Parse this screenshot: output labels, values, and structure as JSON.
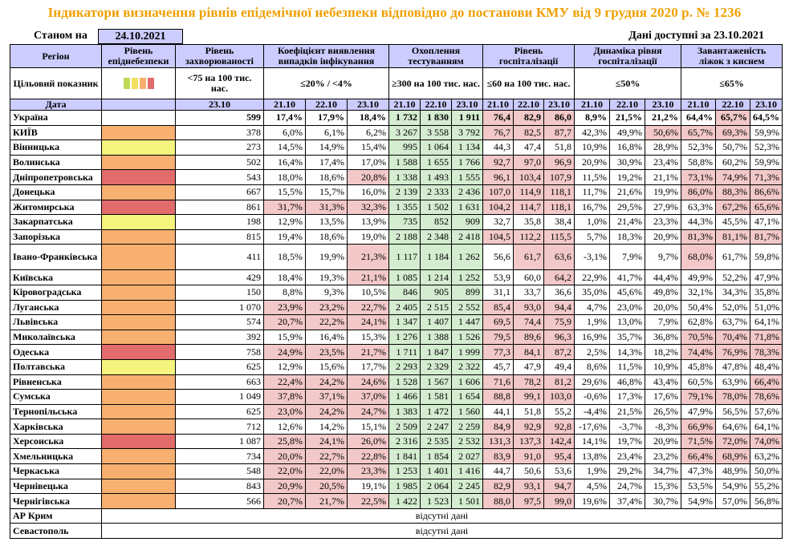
{
  "title": "Індикатори визначення рівнів епідемічної небезпеки відповідно до постанови КМУ від 9 грудня 2020 р. № 1236",
  "as_of_label": "Станом на",
  "as_of_date": "24.10.2021",
  "data_available": "Дані доступні за 23.10.2021",
  "headers": {
    "region": "Регіон",
    "danger_level": "Рівень епіднебезпеки",
    "morbidity": "Рівень захворюваності",
    "detection": "Коефіцієнт виявлення випадків інфікування",
    "testing": "Охоплення тестуванням",
    "hospitalization": "Рівень госпіталізації",
    "hosp_dynamics": "Динаміка рівня госпіталізації",
    "oxygen": "Завантаженість ліжок з киснем"
  },
  "target_row": {
    "label": "Цільовий показник",
    "morbidity": "<75 на 100 тис. нас.",
    "detection": "≤20% / <4%",
    "testing": "≥300 на 100 тис. нас.",
    "hospitalization": "≤60 на 100 тис. нас.",
    "hosp_dynamics": "≤50%",
    "oxygen": "≤65%",
    "swatch_colors": [
      "#c0d858",
      "#f4e060",
      "#f7b070",
      "#e26b6b"
    ]
  },
  "date_row": {
    "label": "Дата",
    "morbidity": "23.10",
    "dates": [
      "21.10",
      "22.10",
      "23.10"
    ]
  },
  "colors": {
    "red": "#f2c8c8",
    "green": "#d4ecd0",
    "level_red": "#e26b6b",
    "level_orange": "#f7b070",
    "level_yellow": "#f4f47e",
    "header": "#ccccff",
    "title": "#f0a000"
  },
  "rows": [
    {
      "name": "Україна",
      "level": "",
      "morb": "599",
      "det": [
        "17,4%",
        "17,9%",
        "18,4%"
      ],
      "test": [
        "1 732",
        "1 830",
        "1 911"
      ],
      "hosp": [
        "76,4",
        "82,9",
        "86,0"
      ],
      "dyn": [
        "8,9%",
        "21,5%",
        "21,2%"
      ],
      "oxy": [
        "64,4%",
        "65,7%",
        "64,5%"
      ],
      "hl": {
        "test": [
          1,
          1,
          1
        ],
        "hosp": [
          1,
          1,
          1
        ],
        "oxy": [
          0,
          1,
          0
        ]
      }
    },
    {
      "name": "КИЇВ",
      "level": "orange",
      "morb": "378",
      "det": [
        "6,0%",
        "6,1%",
        "6,2%"
      ],
      "test": [
        "3 267",
        "3 558",
        "3 792"
      ],
      "hosp": [
        "76,7",
        "82,5",
        "87,7"
      ],
      "dyn": [
        "42,3%",
        "49,9%",
        "50,6%"
      ],
      "oxy": [
        "65,7%",
        "69,3%",
        "59,9%"
      ],
      "hl": {
        "test": [
          1,
          1,
          1
        ],
        "hosp": [
          1,
          1,
          1
        ],
        "dyn": [
          0,
          0,
          1
        ],
        "oxy": [
          1,
          1,
          0
        ]
      }
    },
    {
      "name": "Вінницька",
      "level": "yellow",
      "morb": "273",
      "det": [
        "14,5%",
        "14,9%",
        "15,4%"
      ],
      "test": [
        "995",
        "1 064",
        "1 134"
      ],
      "hosp": [
        "44,3",
        "47,4",
        "51,8"
      ],
      "dyn": [
        "10,9%",
        "16,8%",
        "28,9%"
      ],
      "oxy": [
        "52,3%",
        "50,7%",
        "52,3%"
      ],
      "hl": {
        "test": [
          1,
          1,
          1
        ]
      }
    },
    {
      "name": "Волинська",
      "level": "orange",
      "morb": "502",
      "det": [
        "16,4%",
        "17,4%",
        "17,0%"
      ],
      "test": [
        "1 588",
        "1 655",
        "1 766"
      ],
      "hosp": [
        "92,7",
        "97,0",
        "96,9"
      ],
      "dyn": [
        "20,9%",
        "30,9%",
        "23,4%"
      ],
      "oxy": [
        "58,8%",
        "60,2%",
        "59,9%"
      ],
      "hl": {
        "test": [
          1,
          1,
          1
        ],
        "hosp": [
          1,
          1,
          1
        ]
      }
    },
    {
      "name": "Дніпропетровська",
      "level": "red",
      "morb": "543",
      "det": [
        "18,0%",
        "18,6%",
        "20,8%"
      ],
      "test": [
        "1 338",
        "1 493",
        "1 555"
      ],
      "hosp": [
        "96,1",
        "103,4",
        "107,9"
      ],
      "dyn": [
        "11,5%",
        "19,2%",
        "21,1%"
      ],
      "oxy": [
        "73,1%",
        "74,9%",
        "71,3%"
      ],
      "hl": {
        "det": [
          0,
          0,
          1
        ],
        "test": [
          1,
          1,
          1
        ],
        "hosp": [
          1,
          1,
          1
        ],
        "oxy": [
          1,
          1,
          1
        ]
      }
    },
    {
      "name": "Донецька",
      "level": "orange",
      "morb": "667",
      "det": [
        "15,5%",
        "15,7%",
        "16,0%"
      ],
      "test": [
        "2 139",
        "2 333",
        "2 436"
      ],
      "hosp": [
        "107,0",
        "114,9",
        "118,1"
      ],
      "dyn": [
        "11,7%",
        "21,6%",
        "19,9%"
      ],
      "oxy": [
        "86,0%",
        "88,3%",
        "86,6%"
      ],
      "hl": {
        "test": [
          1,
          1,
          1
        ],
        "hosp": [
          1,
          1,
          1
        ],
        "oxy": [
          1,
          1,
          1
        ]
      }
    },
    {
      "name": "Житомирська",
      "level": "red",
      "morb": "861",
      "det": [
        "31,7%",
        "31,3%",
        "32,3%"
      ],
      "test": [
        "1 355",
        "1 502",
        "1 631"
      ],
      "hosp": [
        "104,2",
        "114,7",
        "118,1"
      ],
      "dyn": [
        "16,7%",
        "29,5%",
        "27,9%"
      ],
      "oxy": [
        "63,3%",
        "67,2%",
        "65,6%"
      ],
      "hl": {
        "det": [
          1,
          1,
          1
        ],
        "test": [
          1,
          1,
          1
        ],
        "hosp": [
          1,
          1,
          1
        ],
        "oxy": [
          0,
          1,
          1
        ]
      }
    },
    {
      "name": "Закарпатська",
      "level": "yellow",
      "morb": "198",
      "det": [
        "12,9%",
        "13,5%",
        "13,9%"
      ],
      "test": [
        "735",
        "852",
        "909"
      ],
      "hosp": [
        "32,7",
        "35,8",
        "38,4"
      ],
      "dyn": [
        "1,0%",
        "21,4%",
        "23,3%"
      ],
      "oxy": [
        "44,3%",
        "45,5%",
        "47,1%"
      ],
      "hl": {
        "test": [
          1,
          1,
          1
        ]
      }
    },
    {
      "name": "Запорізька",
      "level": "orange",
      "morb": "815",
      "det": [
        "19,4%",
        "18,6%",
        "19,0%"
      ],
      "test": [
        "2 188",
        "2 348",
        "2 418"
      ],
      "hosp": [
        "104,5",
        "112,2",
        "115,5"
      ],
      "dyn": [
        "5,7%",
        "18,3%",
        "20,9%"
      ],
      "oxy": [
        "81,3%",
        "81,1%",
        "81,7%"
      ],
      "hl": {
        "test": [
          1,
          1,
          1
        ],
        "hosp": [
          1,
          1,
          1
        ],
        "oxy": [
          1,
          1,
          1
        ]
      }
    },
    {
      "name": "Івано-Франківська",
      "level": "orange",
      "morb": "411",
      "det": [
        "18,5%",
        "19,9%",
        "21,3%"
      ],
      "test": [
        "1 117",
        "1 184",
        "1 262"
      ],
      "hosp": [
        "56,6",
        "61,7",
        "63,6"
      ],
      "dyn": [
        "-3,1%",
        "7,9%",
        "9,7%"
      ],
      "oxy": [
        "68,0%",
        "61,7%",
        "59,8%"
      ],
      "hl": {
        "det": [
          0,
          0,
          1
        ],
        "test": [
          1,
          1,
          1
        ],
        "hosp": [
          0,
          1,
          1
        ],
        "oxy": [
          1,
          0,
          0
        ]
      },
      "tall": true
    },
    {
      "name": "Київська",
      "level": "orange",
      "morb": "429",
      "det": [
        "18,4%",
        "19,3%",
        "21,1%"
      ],
      "test": [
        "1 085",
        "1 214",
        "1 252"
      ],
      "hosp": [
        "53,9",
        "60,0",
        "64,2"
      ],
      "dyn": [
        "22,9%",
        "41,7%",
        "44,4%"
      ],
      "oxy": [
        "49,9%",
        "52,2%",
        "47,9%"
      ],
      "hl": {
        "det": [
          0,
          0,
          1
        ],
        "test": [
          1,
          1,
          1
        ],
        "hosp": [
          0,
          0,
          1
        ]
      }
    },
    {
      "name": "Кіровоградська",
      "level": "orange",
      "morb": "150",
      "det": [
        "8,8%",
        "9,3%",
        "10,5%"
      ],
      "test": [
        "846",
        "905",
        "899"
      ],
      "hosp": [
        "31,1",
        "33,7",
        "36,6"
      ],
      "dyn": [
        "35,0%",
        "45,6%",
        "49,8%"
      ],
      "oxy": [
        "32,1%",
        "34,3%",
        "35,8%"
      ],
      "hl": {
        "test": [
          1,
          1,
          1
        ]
      }
    },
    {
      "name": "Луганська",
      "level": "orange",
      "morb": "1 070",
      "det": [
        "23,9%",
        "23,2%",
        "22,7%"
      ],
      "test": [
        "2 405",
        "2 515",
        "2 552"
      ],
      "hosp": [
        "85,4",
        "93,0",
        "94,4"
      ],
      "dyn": [
        "4,7%",
        "23,0%",
        "20,0%"
      ],
      "oxy": [
        "50,4%",
        "52,0%",
        "51,0%"
      ],
      "hl": {
        "det": [
          1,
          1,
          1
        ],
        "test": [
          1,
          1,
          1
        ],
        "hosp": [
          1,
          1,
          1
        ]
      }
    },
    {
      "name": "Львівська",
      "level": "orange",
      "morb": "574",
      "det": [
        "20,7%",
        "22,2%",
        "24,1%"
      ],
      "test": [
        "1 347",
        "1 407",
        "1 447"
      ],
      "hosp": [
        "69,5",
        "74,4",
        "75,9"
      ],
      "dyn": [
        "1,9%",
        "13,0%",
        "7,9%"
      ],
      "oxy": [
        "62,8%",
        "63,7%",
        "64,1%"
      ],
      "hl": {
        "det": [
          1,
          1,
          1
        ],
        "test": [
          1,
          1,
          1
        ],
        "hosp": [
          1,
          1,
          1
        ]
      }
    },
    {
      "name": "Миколаївська",
      "level": "orange",
      "morb": "392",
      "det": [
        "15,9%",
        "16,4%",
        "15,3%"
      ],
      "test": [
        "1 276",
        "1 388",
        "1 526"
      ],
      "hosp": [
        "79,5",
        "89,6",
        "96,3"
      ],
      "dyn": [
        "16,9%",
        "35,7%",
        "36,8%"
      ],
      "oxy": [
        "70,5%",
        "70,4%",
        "71,8%"
      ],
      "hl": {
        "test": [
          1,
          1,
          1
        ],
        "hosp": [
          1,
          1,
          1
        ],
        "oxy": [
          1,
          1,
          1
        ]
      }
    },
    {
      "name": "Одеська",
      "level": "red",
      "morb": "758",
      "det": [
        "24,9%",
        "23,5%",
        "21,7%"
      ],
      "test": [
        "1 711",
        "1 847",
        "1 999"
      ],
      "hosp": [
        "77,3",
        "84,1",
        "87,2"
      ],
      "dyn": [
        "2,5%",
        "14,3%",
        "18,2%"
      ],
      "oxy": [
        "74,4%",
        "76,9%",
        "78,3%"
      ],
      "hl": {
        "det": [
          1,
          1,
          1
        ],
        "test": [
          1,
          1,
          1
        ],
        "hosp": [
          1,
          1,
          1
        ],
        "oxy": [
          1,
          1,
          1
        ]
      }
    },
    {
      "name": "Полтавська",
      "level": "yellow",
      "morb": "625",
      "det": [
        "12,9%",
        "15,6%",
        "17,7%"
      ],
      "test": [
        "2 293",
        "2 329",
        "2 322"
      ],
      "hosp": [
        "45,7",
        "47,9",
        "49,4"
      ],
      "dyn": [
        "8,6%",
        "11,5%",
        "10,9%"
      ],
      "oxy": [
        "45,8%",
        "47,8%",
        "48,4%"
      ],
      "hl": {
        "test": [
          1,
          1,
          1
        ]
      }
    },
    {
      "name": "Рівненська",
      "level": "orange",
      "morb": "663",
      "det": [
        "22,4%",
        "24,2%",
        "24,6%"
      ],
      "test": [
        "1 528",
        "1 567",
        "1 606"
      ],
      "hosp": [
        "71,6",
        "78,2",
        "81,2"
      ],
      "dyn": [
        "29,6%",
        "46,8%",
        "43,4%"
      ],
      "oxy": [
        "60,5%",
        "63,9%",
        "66,4%"
      ],
      "hl": {
        "det": [
          1,
          1,
          1
        ],
        "test": [
          1,
          1,
          1
        ],
        "hosp": [
          1,
          1,
          1
        ],
        "oxy": [
          0,
          0,
          1
        ]
      }
    },
    {
      "name": "Сумська",
      "level": "orange",
      "morb": "1 049",
      "det": [
        "37,8%",
        "37,1%",
        "37,0%"
      ],
      "test": [
        "1 466",
        "1 581",
        "1 654"
      ],
      "hosp": [
        "88,8",
        "99,1",
        "103,0"
      ],
      "dyn": [
        "-0,6%",
        "17,3%",
        "17,6%"
      ],
      "oxy": [
        "79,1%",
        "78,0%",
        "78,6%"
      ],
      "hl": {
        "det": [
          1,
          1,
          1
        ],
        "test": [
          1,
          1,
          1
        ],
        "hosp": [
          1,
          1,
          1
        ],
        "oxy": [
          1,
          1,
          1
        ]
      }
    },
    {
      "name": "Тернопільська",
      "level": "orange",
      "morb": "625",
      "det": [
        "23,0%",
        "24,2%",
        "24,7%"
      ],
      "test": [
        "1 383",
        "1 472",
        "1 560"
      ],
      "hosp": [
        "44,1",
        "51,8",
        "55,2"
      ],
      "dyn": [
        "-4,4%",
        "21,5%",
        "26,5%"
      ],
      "oxy": [
        "47,9%",
        "56,5%",
        "57,6%"
      ],
      "hl": {
        "det": [
          1,
          1,
          1
        ],
        "test": [
          1,
          1,
          1
        ]
      }
    },
    {
      "name": "Харківська",
      "level": "orange",
      "morb": "712",
      "det": [
        "12,6%",
        "14,2%",
        "15,1%"
      ],
      "test": [
        "2 509",
        "2 247",
        "2 259"
      ],
      "hosp": [
        "84,9",
        "92,9",
        "92,8"
      ],
      "dyn": [
        "-17,6%",
        "-3,7%",
        "-8,3%"
      ],
      "oxy": [
        "66,9%",
        "64,6%",
        "64,1%"
      ],
      "hl": {
        "test": [
          1,
          1,
          1
        ],
        "hosp": [
          1,
          1,
          1
        ],
        "oxy": [
          1,
          0,
          0
        ]
      }
    },
    {
      "name": "Херсонська",
      "level": "red",
      "morb": "1 087",
      "det": [
        "25,8%",
        "24,1%",
        "26,0%"
      ],
      "test": [
        "2 316",
        "2 535",
        "2 532"
      ],
      "hosp": [
        "131,3",
        "137,3",
        "142,4"
      ],
      "dyn": [
        "14,1%",
        "19,7%",
        "20,9%"
      ],
      "oxy": [
        "71,5%",
        "72,0%",
        "74,0%"
      ],
      "hl": {
        "det": [
          1,
          1,
          1
        ],
        "test": [
          1,
          1,
          1
        ],
        "hosp": [
          1,
          1,
          1
        ],
        "oxy": [
          1,
          1,
          1
        ]
      }
    },
    {
      "name": "Хмельницька",
      "level": "orange",
      "morb": "734",
      "det": [
        "20,0%",
        "22,7%",
        "22,8%"
      ],
      "test": [
        "1 841",
        "1 854",
        "2 027"
      ],
      "hosp": [
        "83,9",
        "91,0",
        "95,4"
      ],
      "dyn": [
        "13,8%",
        "23,4%",
        "23,2%"
      ],
      "oxy": [
        "66,4%",
        "68,9%",
        "63,2%"
      ],
      "hl": {
        "det": [
          1,
          1,
          1
        ],
        "test": [
          1,
          1,
          1
        ],
        "hosp": [
          1,
          1,
          1
        ],
        "oxy": [
          1,
          1,
          0
        ]
      }
    },
    {
      "name": "Черкаська",
      "level": "orange",
      "morb": "548",
      "det": [
        "22,0%",
        "22,0%",
        "23,3%"
      ],
      "test": [
        "1 253",
        "1 401",
        "1 416"
      ],
      "hosp": [
        "44,7",
        "50,6",
        "53,6"
      ],
      "dyn": [
        "1,9%",
        "29,2%",
        "34,7%"
      ],
      "oxy": [
        "47,3%",
        "48,9%",
        "50,0%"
      ],
      "hl": {
        "det": [
          1,
          1,
          1
        ],
        "test": [
          1,
          1,
          1
        ]
      }
    },
    {
      "name": "Чернівецька",
      "level": "orange",
      "morb": "843",
      "det": [
        "20,9%",
        "20,5%",
        "19,1%"
      ],
      "test": [
        "1 985",
        "2 064",
        "2 245"
      ],
      "hosp": [
        "82,9",
        "93,1",
        "94,7"
      ],
      "dyn": [
        "4,5%",
        "24,7%",
        "15,3%"
      ],
      "oxy": [
        "53,5%",
        "54,9%",
        "55,2%"
      ],
      "hl": {
        "det": [
          1,
          1,
          0
        ],
        "test": [
          1,
          1,
          1
        ],
        "hosp": [
          1,
          1,
          1
        ]
      }
    },
    {
      "name": "Чернігівська",
      "level": "orange",
      "morb": "566",
      "det": [
        "20,7%",
        "21,7%",
        "22,5%"
      ],
      "test": [
        "1 422",
        "1 523",
        "1 501"
      ],
      "hosp": [
        "88,0",
        "97,5",
        "99,0"
      ],
      "dyn": [
        "19,6%",
        "37,4%",
        "30,7%"
      ],
      "oxy": [
        "54,9%",
        "57,0%",
        "56,8%"
      ],
      "hl": {
        "det": [
          1,
          1,
          1
        ],
        "test": [
          1,
          1,
          1
        ],
        "hosp": [
          1,
          1,
          1
        ]
      }
    }
  ],
  "na_rows": [
    {
      "name": "АР Крим",
      "text": "відсутні дані"
    },
    {
      "name": "Севастополь",
      "text": "відсутні дані"
    }
  ]
}
